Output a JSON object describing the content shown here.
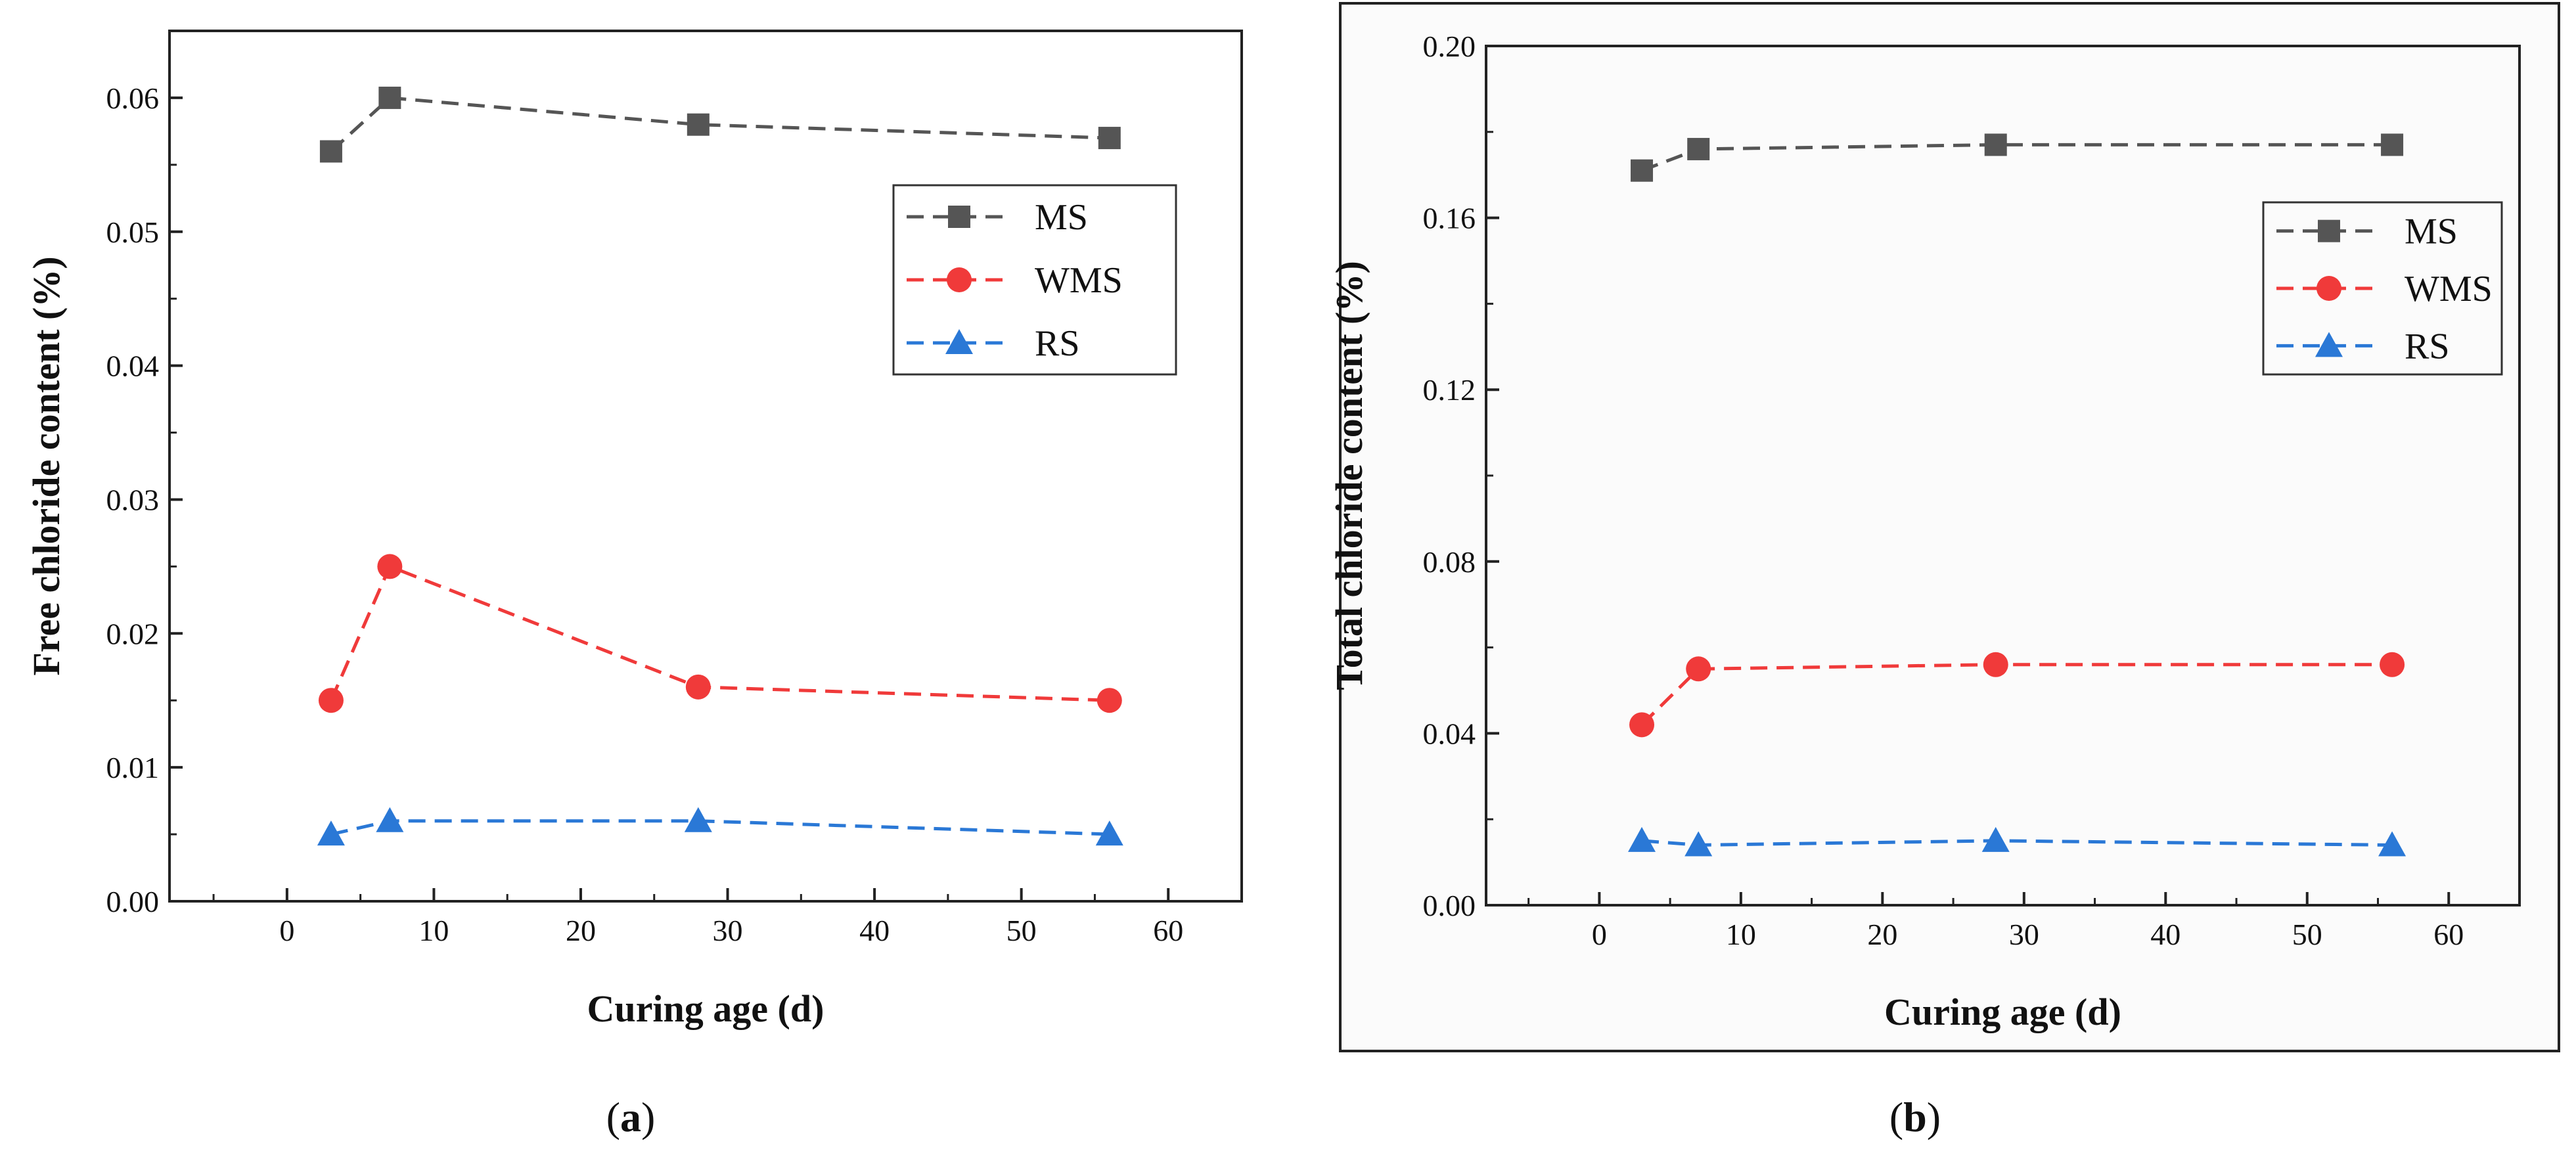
{
  "chart_data": [
    {
      "type": "line",
      "panel_label": "a",
      "xlabel": "Curing age (d)",
      "ylabel": "Free chloride content (%)",
      "xlim": [
        -8,
        65
      ],
      "ylim": [
        0,
        0.065
      ],
      "xticks": [
        0,
        10,
        20,
        30,
        40,
        50,
        60
      ],
      "yticks": [
        0.0,
        0.01,
        0.02,
        0.03,
        0.04,
        0.05,
        0.06
      ],
      "ytick_labels": [
        "0.00",
        "0.01",
        "0.02",
        "0.03",
        "0.04",
        "0.05",
        "0.06"
      ],
      "legend_position": "top-right",
      "series": [
        {
          "name": "MS",
          "color": "#555555",
          "marker": "square",
          "x": [
            3,
            7,
            28,
            56
          ],
          "values": [
            0.056,
            0.06,
            0.058,
            0.057
          ]
        },
        {
          "name": "WMS",
          "color": "#f03a3a",
          "marker": "circle",
          "x": [
            3,
            7,
            28,
            56
          ],
          "values": [
            0.015,
            0.025,
            0.016,
            0.015
          ]
        },
        {
          "name": "RS",
          "color": "#2a78d6",
          "marker": "triangle",
          "x": [
            3,
            7,
            28,
            56
          ],
          "values": [
            0.005,
            0.006,
            0.006,
            0.005
          ]
        }
      ]
    },
    {
      "type": "line",
      "panel_label": "b",
      "xlabel": "Curing age (d)",
      "ylabel": "Total chloride content (%)",
      "xlim": [
        -8,
        65
      ],
      "ylim": [
        0,
        0.2
      ],
      "xticks": [
        0,
        10,
        20,
        30,
        40,
        50,
        60
      ],
      "yticks": [
        0.0,
        0.04,
        0.08,
        0.12,
        0.16,
        0.2
      ],
      "ytick_labels": [
        "0.00",
        "0.04",
        "0.08",
        "0.12",
        "0.16",
        "0.20"
      ],
      "legend_position": "top-right",
      "series": [
        {
          "name": "MS",
          "color": "#555555",
          "marker": "square",
          "x": [
            3,
            7,
            28,
            56
          ],
          "values": [
            0.171,
            0.176,
            0.177,
            0.177
          ]
        },
        {
          "name": "WMS",
          "color": "#f03a3a",
          "marker": "circle",
          "x": [
            3,
            7,
            28,
            56
          ],
          "values": [
            0.042,
            0.055,
            0.056,
            0.056
          ]
        },
        {
          "name": "RS",
          "color": "#2a78d6",
          "marker": "triangle",
          "x": [
            3,
            7,
            28,
            56
          ],
          "values": [
            0.015,
            0.014,
            0.015,
            0.014
          ]
        }
      ]
    }
  ]
}
